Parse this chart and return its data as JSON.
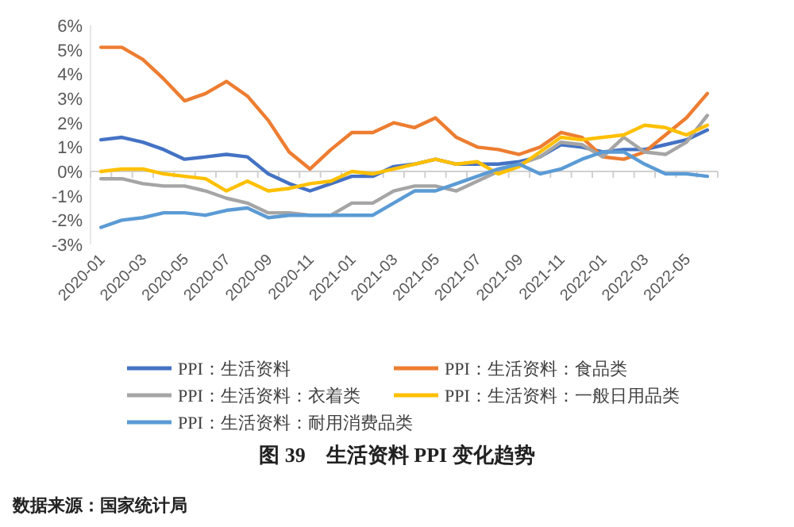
{
  "chart_data": {
    "type": "line",
    "title": "图 39　生活资料 PPI 变化趋势",
    "annotations": [
      "数据来源：国家统计局"
    ],
    "categories": [
      "2020-01",
      null,
      "2020-03",
      null,
      "2020-05",
      null,
      "2020-07",
      null,
      "2020-09",
      null,
      "2020-11",
      null,
      "2021-01",
      null,
      "2021-03",
      null,
      "2021-05",
      null,
      "2021-07",
      null,
      "2021-09",
      null,
      "2021-11",
      null,
      "2022-01",
      null,
      "2022-03",
      null,
      "2022-05",
      null
    ],
    "ylim": [
      -3,
      6
    ],
    "yticks": [
      {
        "value": -3,
        "label": "-3%"
      },
      {
        "value": -2,
        "label": "-2%"
      },
      {
        "value": -1,
        "label": "-1%"
      },
      {
        "value": 0,
        "label": "0%"
      },
      {
        "value": 1,
        "label": "1%"
      },
      {
        "value": 2,
        "label": "2%"
      },
      {
        "value": 3,
        "label": "3%"
      },
      {
        "value": 4,
        "label": "4%"
      },
      {
        "value": 5,
        "label": "5%"
      },
      {
        "value": 6,
        "label": "6%"
      }
    ],
    "legend": "bottom",
    "series": [
      {
        "name": "PPI：生活资料",
        "color": "#4472c4",
        "values": [
          1.3,
          1.4,
          1.2,
          0.9,
          0.5,
          0.6,
          0.7,
          0.6,
          -0.1,
          -0.5,
          -0.8,
          -0.5,
          -0.2,
          -0.2,
          0.2,
          0.3,
          0.5,
          0.3,
          0.3,
          0.3,
          0.4,
          0.6,
          1.1,
          1.0,
          0.8,
          0.9,
          0.9,
          1.1,
          1.3,
          1.7
        ]
      },
      {
        "name": "PPI：生活资料：食品类",
        "color": "#ed7d31",
        "values": [
          5.1,
          5.1,
          4.6,
          3.8,
          2.9,
          3.2,
          3.7,
          3.1,
          2.1,
          0.8,
          0.1,
          0.9,
          1.6,
          1.6,
          2.0,
          1.8,
          2.2,
          1.4,
          1.0,
          0.9,
          0.7,
          1.0,
          1.6,
          1.4,
          0.6,
          0.5,
          0.8,
          1.5,
          2.2,
          3.2
        ]
      },
      {
        "name": "PPI：生活资料：衣着类",
        "color": "#a5a5a5",
        "values": [
          -0.3,
          -0.3,
          -0.5,
          -0.6,
          -0.6,
          -0.8,
          -1.1,
          -1.3,
          -1.7,
          -1.7,
          -1.8,
          -1.8,
          -1.3,
          -1.3,
          -0.8,
          -0.6,
          -0.6,
          -0.8,
          -0.4,
          0.0,
          0.3,
          0.6,
          1.2,
          1.1,
          0.6,
          1.4,
          0.8,
          0.7,
          1.2,
          2.3
        ]
      },
      {
        "name": "PPI：生活资料：一般日用品类",
        "color": "#ffc000",
        "values": [
          0.0,
          0.1,
          0.1,
          -0.1,
          -0.2,
          -0.3,
          -0.8,
          -0.4,
          -0.8,
          -0.7,
          -0.5,
          -0.4,
          0.0,
          -0.1,
          0.1,
          0.3,
          0.5,
          0.3,
          0.4,
          -0.1,
          0.2,
          0.8,
          1.4,
          1.3,
          1.4,
          1.5,
          1.9,
          1.8,
          1.5,
          1.9
        ]
      },
      {
        "name": "PPI：生活资料：耐用消费品类",
        "color": "#5b9bd5",
        "values": [
          -2.3,
          -2.0,
          -1.9,
          -1.7,
          -1.7,
          -1.8,
          -1.6,
          -1.5,
          -1.9,
          -1.8,
          -1.8,
          -1.8,
          -1.8,
          -1.8,
          -1.3,
          -0.8,
          -0.8,
          -0.5,
          -0.2,
          0.1,
          0.3,
          -0.1,
          0.1,
          0.5,
          0.8,
          0.8,
          0.3,
          -0.1,
          -0.1,
          -0.2
        ]
      }
    ]
  }
}
